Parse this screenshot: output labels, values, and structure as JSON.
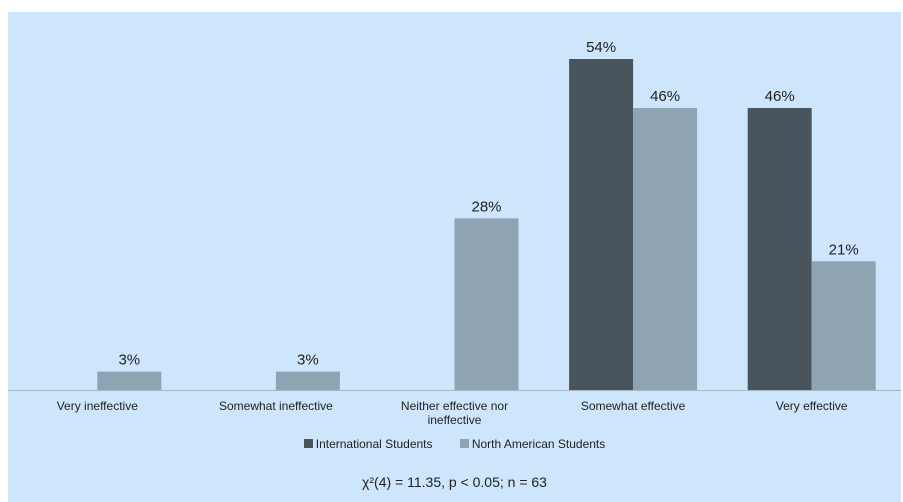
{
  "chart_data": {
    "type": "bar",
    "categories": [
      "Very ineffective",
      "Somewhat ineffective",
      "Neither effective nor ineffective",
      "Somewhat effective",
      "Very effective"
    ],
    "series": [
      {
        "name": "International Students",
        "values": [
          0,
          0,
          0,
          54,
          46
        ],
        "color": "#4a545c"
      },
      {
        "name": "North American Students",
        "values": [
          3,
          3,
          28,
          46,
          21
        ],
        "color": "#8fa4b3"
      }
    ],
    "value_labels": [
      [
        "",
        "",
        "",
        "54%",
        "46%"
      ],
      [
        "3%",
        "3%",
        "28%",
        "46%",
        "21%"
      ]
    ],
    "ylim": [
      0,
      54
    ],
    "grid": false,
    "legend_position": "bottom",
    "annotation": "χ²(4) = 11.35, p < 0.05; n = 63"
  }
}
